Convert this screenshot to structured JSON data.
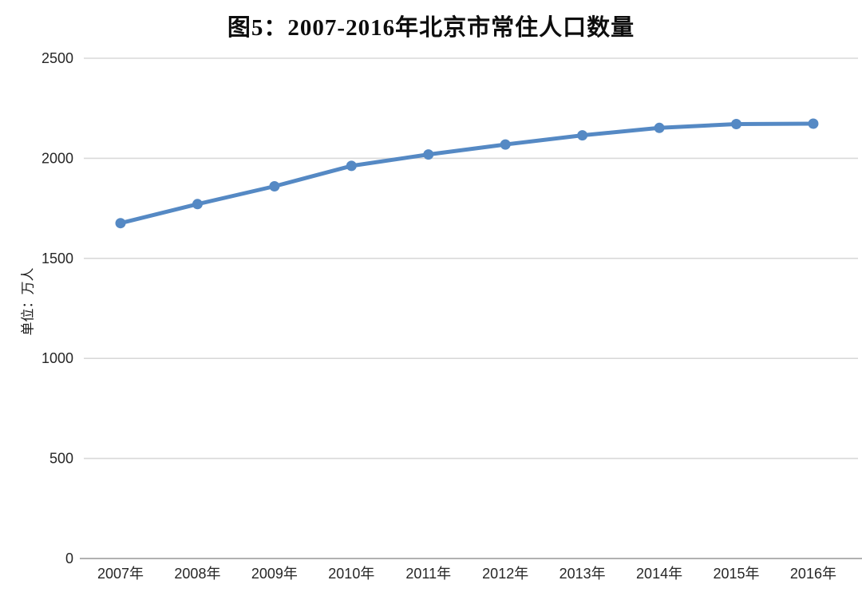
{
  "page": {
    "background": "#ffffff"
  },
  "chart_data": {
    "type": "line",
    "title": "图5：2007-2016年北京市常住人口数量",
    "xlabel": "",
    "ylabel": "单位：万人",
    "categories": [
      "2007年",
      "2008年",
      "2009年",
      "2010年",
      "2011年",
      "2012年",
      "2013年",
      "2014年",
      "2015年",
      "2016年"
    ],
    "values": [
      1676,
      1771,
      1860,
      1962,
      2019,
      2069,
      2115,
      2152,
      2171,
      2173
    ],
    "ylim": [
      0,
      2500
    ],
    "yticks": [
      0,
      500,
      1000,
      1500,
      2000,
      2500
    ],
    "grid": true,
    "legend": "none",
    "marker": "circle",
    "colors": {
      "line": "#5589c4",
      "marker": "#5589c4",
      "gridline": "#d9d9d9",
      "axis_line": "#a6a6a6",
      "tick_text": "#262626",
      "title_text": "#0d0d0d"
    }
  }
}
